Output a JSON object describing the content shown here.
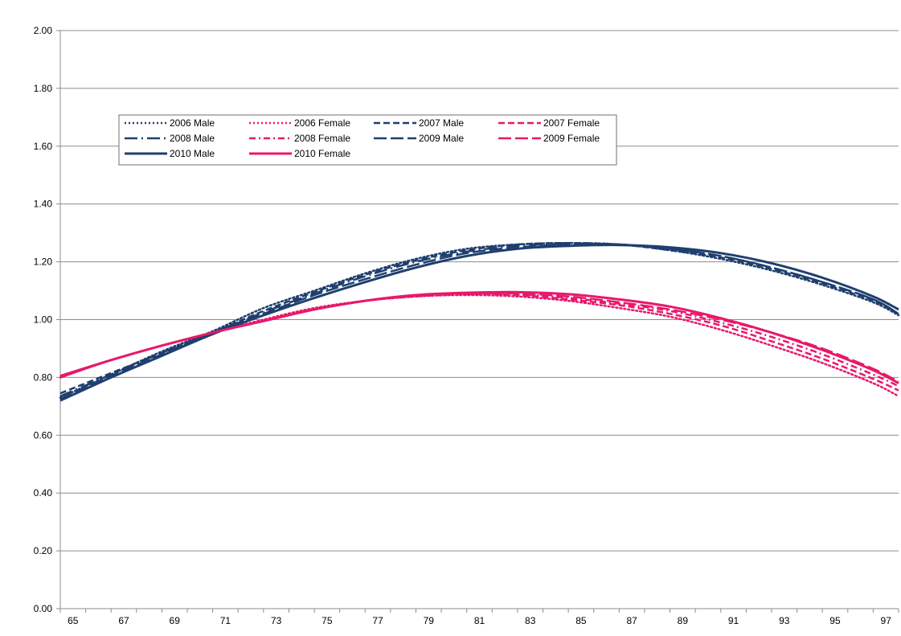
{
  "colors": {
    "male": "#1f3f6e",
    "female": "#e8186b",
    "grid": "#8c8c8c",
    "axis": "#8c8c8c"
  },
  "chart_data": {
    "type": "line",
    "title": "",
    "xlabel": "",
    "ylabel": "",
    "xlim": [
      65,
      98
    ],
    "ylim": [
      0,
      2
    ],
    "x_ticks": [
      "65",
      "67",
      "69",
      "71",
      "73",
      "75",
      "77",
      "79",
      "81",
      "83",
      "85",
      "87",
      "89",
      "91",
      "93",
      "95",
      "97"
    ],
    "y_ticks": [
      "0.00",
      "0.20",
      "0.40",
      "0.60",
      "0.80",
      "1.00",
      "1.20",
      "1.40",
      "1.60",
      "1.80",
      "2.00"
    ],
    "grid": "horizontal",
    "legend_position": "top-left",
    "x": [
      65,
      67,
      69,
      71,
      73,
      75,
      77,
      79,
      81,
      83,
      85,
      87,
      89,
      91,
      93,
      95,
      97,
      98
    ],
    "series": [
      {
        "name": "2006 Male",
        "group": "male",
        "dash": "dot",
        "values": [
          0.73,
          0.81,
          0.89,
          0.96,
          1.04,
          1.1,
          1.16,
          1.21,
          1.245,
          1.26,
          1.265,
          1.26,
          1.24,
          1.21,
          1.17,
          1.12,
          1.06,
          1.015
        ]
      },
      {
        "name": "2006 Female",
        "group": "female",
        "dash": "dot",
        "values": [
          0.8,
          0.86,
          0.91,
          0.955,
          1.0,
          1.04,
          1.065,
          1.08,
          1.085,
          1.08,
          1.065,
          1.04,
          1.01,
          0.965,
          0.91,
          0.85,
          0.78,
          0.735
        ]
      },
      {
        "name": "2007 Male",
        "group": "male",
        "dash": "dash",
        "values": [
          0.745,
          0.815,
          0.885,
          0.955,
          1.03,
          1.095,
          1.155,
          1.205,
          1.24,
          1.26,
          1.265,
          1.26,
          1.24,
          1.215,
          1.175,
          1.125,
          1.065,
          1.02
        ]
      },
      {
        "name": "2007 Female",
        "group": "female",
        "dash": "dash",
        "values": [
          0.8,
          0.86,
          0.91,
          0.955,
          0.995,
          1.035,
          1.065,
          1.08,
          1.088,
          1.085,
          1.07,
          1.05,
          1.02,
          0.98,
          0.925,
          0.865,
          0.795,
          0.755
        ]
      },
      {
        "name": "2008 Male",
        "group": "male",
        "dash": "longdashdot",
        "values": [
          0.735,
          0.81,
          0.885,
          0.955,
          1.025,
          1.09,
          1.15,
          1.2,
          1.235,
          1.255,
          1.262,
          1.26,
          1.245,
          1.22,
          1.18,
          1.13,
          1.07,
          1.02
        ]
      },
      {
        "name": "2008 Female",
        "group": "female",
        "dash": "dashdot",
        "values": [
          0.8,
          0.86,
          0.91,
          0.955,
          0.995,
          1.035,
          1.065,
          1.082,
          1.09,
          1.088,
          1.075,
          1.055,
          1.03,
          0.99,
          0.94,
          0.88,
          0.81,
          0.77
        ]
      },
      {
        "name": "2009 Male",
        "group": "male",
        "dash": "longdash",
        "values": [
          0.725,
          0.805,
          0.88,
          0.955,
          1.02,
          1.085,
          1.14,
          1.19,
          1.23,
          1.25,
          1.26,
          1.26,
          1.245,
          1.22,
          1.18,
          1.13,
          1.07,
          1.02
        ]
      },
      {
        "name": "2009 Female",
        "group": "female",
        "dash": "longdash",
        "values": [
          0.8,
          0.86,
          0.91,
          0.955,
          0.995,
          1.035,
          1.065,
          1.082,
          1.09,
          1.09,
          1.08,
          1.06,
          1.035,
          1.0,
          0.955,
          0.9,
          0.83,
          0.785
        ]
      },
      {
        "name": "2010 Male",
        "group": "male",
        "dash": "solid",
        "values": [
          0.72,
          0.8,
          0.875,
          0.95,
          1.015,
          1.075,
          1.13,
          1.18,
          1.22,
          1.245,
          1.255,
          1.258,
          1.25,
          1.23,
          1.195,
          1.145,
          1.08,
          1.035
        ]
      },
      {
        "name": "2010 Female",
        "group": "female",
        "dash": "solid",
        "values": [
          0.805,
          0.86,
          0.91,
          0.955,
          0.995,
          1.035,
          1.065,
          1.085,
          1.093,
          1.095,
          1.088,
          1.07,
          1.045,
          1.005,
          0.955,
          0.895,
          0.825,
          0.78
        ]
      }
    ]
  }
}
